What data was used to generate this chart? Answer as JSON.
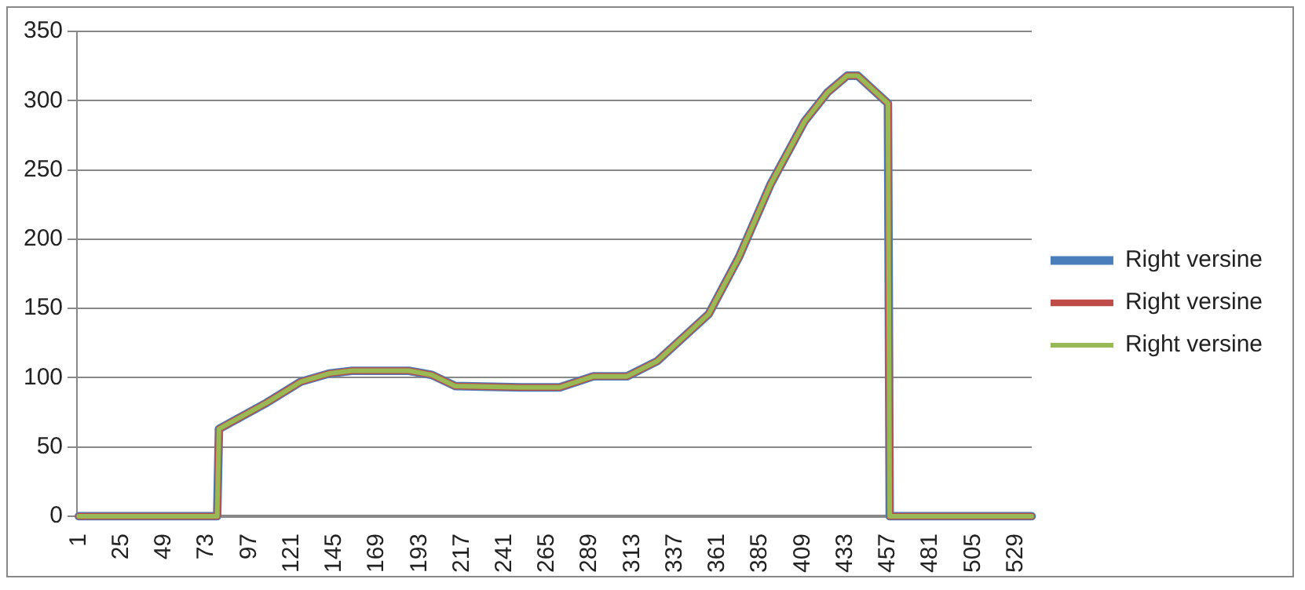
{
  "chart_data": {
    "type": "line",
    "x": [
      1,
      79,
      80,
      107,
      126,
      142,
      155,
      187,
      200,
      213,
      250,
      272,
      291,
      310,
      327,
      356,
      373,
      391,
      410,
      423,
      434,
      440,
      457,
      458,
      538
    ],
    "xlim": [
      0,
      538
    ],
    "xticks": [
      1,
      25,
      49,
      73,
      97,
      121,
      145,
      169,
      193,
      217,
      241,
      265,
      289,
      313,
      337,
      361,
      385,
      409,
      433,
      457,
      481,
      505,
      529
    ],
    "ylim": [
      0,
      350
    ],
    "yticks": [
      0,
      50,
      100,
      150,
      200,
      250,
      300,
      350
    ],
    "grid": "y",
    "legend": "right",
    "marker": "none",
    "line_style": "solid",
    "series": [
      {
        "name": "Right versine",
        "color": "#4a7ebb",
        "values": [
          0,
          0,
          63,
          82,
          97,
          103,
          105,
          105,
          102,
          94,
          93,
          93,
          101,
          101,
          112,
          146,
          187,
          240,
          285,
          306,
          318,
          318,
          298,
          0,
          0
        ]
      },
      {
        "name": "Right versine",
        "color": "#be4b48",
        "values": [
          0,
          0,
          63,
          82,
          97,
          103,
          105,
          105,
          102,
          94,
          93,
          93,
          101,
          101,
          112,
          146,
          187,
          240,
          285,
          306,
          318,
          318,
          298,
          0,
          0
        ]
      },
      {
        "name": "Right versine",
        "color": "#98b954",
        "values": [
          0,
          0,
          63,
          82,
          97,
          103,
          105,
          105,
          102,
          94,
          93,
          93,
          101,
          101,
          112,
          146,
          187,
          240,
          285,
          306,
          318,
          318,
          298,
          0,
          0
        ]
      }
    ]
  }
}
